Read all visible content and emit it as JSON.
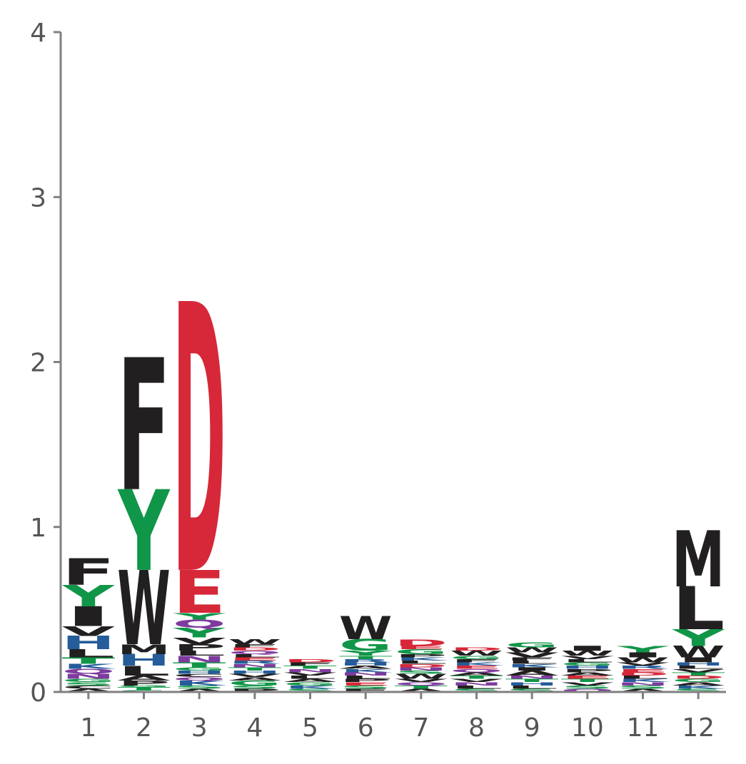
{
  "chart_data": {
    "type": "sequence-logo",
    "title": "",
    "xlabel": "",
    "ylabel": "",
    "ylim": [
      0,
      4
    ],
    "yticks": [
      "0",
      "1",
      "2",
      "3",
      "4"
    ],
    "positions": [
      "1",
      "2",
      "3",
      "4",
      "5",
      "6",
      "7",
      "8",
      "9",
      "10",
      "11",
      "12"
    ],
    "colors": {
      "A": "#221f20",
      "C": "#221f20",
      "D": "#d62839",
      "E": "#d62839",
      "F": "#221f20",
      "G": "#109648",
      "H": "#255c99",
      "I": "#221f20",
      "K": "#255c99",
      "L": "#221f20",
      "M": "#221f20",
      "N": "#7e3b9e",
      "P": "#221f20",
      "Q": "#7e3b9e",
      "R": "#255c99",
      "S": "#109648",
      "T": "#109648",
      "V": "#221f20",
      "W": "#221f20",
      "Y": "#109648"
    },
    "stacks": [
      [
        [
          "A",
          0.02
        ],
        [
          "C",
          0.02
        ],
        [
          "S",
          0.02
        ],
        [
          "G",
          0.02
        ],
        [
          "N",
          0.03
        ],
        [
          "Q",
          0.03
        ],
        [
          "K",
          0.03
        ],
        [
          "T",
          0.04
        ],
        [
          "L",
          0.05
        ],
        [
          "H",
          0.08
        ],
        [
          "V",
          0.06
        ],
        [
          "I",
          0.12
        ],
        [
          "Y",
          0.13
        ],
        [
          "F",
          0.16
        ]
      ],
      [
        [
          "S",
          0.01
        ],
        [
          "T",
          0.02
        ],
        [
          "G",
          0.01
        ],
        [
          "P",
          0.03
        ],
        [
          "A",
          0.03
        ],
        [
          "L",
          0.06
        ],
        [
          "H",
          0.07
        ],
        [
          "M",
          0.06
        ],
        [
          "W",
          0.45
        ],
        [
          "Y",
          0.49
        ],
        [
          "F",
          0.8
        ]
      ],
      [
        [
          "A",
          0.02
        ],
        [
          "S",
          0.02
        ],
        [
          "K",
          0.03
        ],
        [
          "Q",
          0.02
        ],
        [
          "C",
          0.02
        ],
        [
          "H",
          0.02
        ],
        [
          "G",
          0.02
        ],
        [
          "T",
          0.03
        ],
        [
          "N",
          0.04
        ],
        [
          "L",
          0.03
        ],
        [
          "P",
          0.04
        ],
        [
          "V",
          0.04
        ],
        [
          "Y",
          0.06
        ],
        [
          "Q",
          0.05
        ],
        [
          "Y",
          0.04
        ],
        [
          "E",
          0.26
        ],
        [
          "D",
          1.63
        ]
      ],
      [
        [
          "P",
          0.02
        ],
        [
          "S",
          0.02
        ],
        [
          "G",
          0.03
        ],
        [
          "A",
          0.02
        ],
        [
          "V",
          0.02
        ],
        [
          "H",
          0.02
        ],
        [
          "T",
          0.02
        ],
        [
          "N",
          0.02
        ],
        [
          "R",
          0.02
        ],
        [
          "E",
          0.02
        ],
        [
          "L",
          0.02
        ],
        [
          "Q",
          0.02
        ],
        [
          "D",
          0.02
        ],
        [
          "F",
          0.02
        ],
        [
          "W",
          0.03
        ]
      ],
      [
        [
          "S",
          0.02
        ],
        [
          "K",
          0.02
        ],
        [
          "G",
          0.02
        ],
        [
          "A",
          0.02
        ],
        [
          "L",
          0.02
        ],
        [
          "V",
          0.02
        ],
        [
          "N",
          0.02
        ],
        [
          "T",
          0.02
        ],
        [
          "F",
          0.02
        ],
        [
          "D",
          0.02
        ]
      ],
      [
        [
          "F",
          0.02
        ],
        [
          "S",
          0.02
        ],
        [
          "E",
          0.02
        ],
        [
          "P",
          0.02
        ],
        [
          "L",
          0.02
        ],
        [
          "N",
          0.02
        ],
        [
          "K",
          0.02
        ],
        [
          "A",
          0.02
        ],
        [
          "H",
          0.02
        ],
        [
          "R",
          0.02
        ],
        [
          "T",
          0.02
        ],
        [
          "Y",
          0.03
        ],
        [
          "G",
          0.07
        ],
        [
          "W",
          0.14
        ]
      ],
      [
        [
          "A",
          0.02
        ],
        [
          "T",
          0.02
        ],
        [
          "Q",
          0.02
        ],
        [
          "V",
          0.02
        ],
        [
          "W",
          0.03
        ],
        [
          "S",
          0.02
        ],
        [
          "N",
          0.02
        ],
        [
          "D",
          0.02
        ],
        [
          "L",
          0.02
        ],
        [
          "K",
          0.02
        ],
        [
          "P",
          0.02
        ],
        [
          "G",
          0.03
        ],
        [
          "E",
          0.02
        ],
        [
          "D",
          0.04
        ]
      ],
      [
        [
          "S",
          0.02
        ],
        [
          "L",
          0.02
        ],
        [
          "N",
          0.02
        ],
        [
          "V",
          0.02
        ],
        [
          "T",
          0.02
        ],
        [
          "A",
          0.02
        ],
        [
          "Q",
          0.02
        ],
        [
          "E",
          0.02
        ],
        [
          "K",
          0.02
        ],
        [
          "F",
          0.02
        ],
        [
          "G",
          0.02
        ],
        [
          "W",
          0.03
        ],
        [
          "D",
          0.02
        ]
      ],
      [
        [
          "S",
          0.02
        ],
        [
          "L",
          0.02
        ],
        [
          "H",
          0.02
        ],
        [
          "T",
          0.02
        ],
        [
          "N",
          0.02
        ],
        [
          "A",
          0.03
        ],
        [
          "I",
          0.02
        ],
        [
          "K",
          0.02
        ],
        [
          "L",
          0.02
        ],
        [
          "F",
          0.02
        ],
        [
          "V",
          0.03
        ],
        [
          "W",
          0.03
        ],
        [
          "G",
          0.03
        ]
      ],
      [
        [
          "Q",
          0.02
        ],
        [
          "S",
          0.02
        ],
        [
          "V",
          0.02
        ],
        [
          "T",
          0.02
        ],
        [
          "E",
          0.02
        ],
        [
          "A",
          0.02
        ],
        [
          "P",
          0.02
        ],
        [
          "H",
          0.02
        ],
        [
          "G",
          0.02
        ],
        [
          "L",
          0.02
        ],
        [
          "V",
          0.02
        ],
        [
          "W",
          0.03
        ],
        [
          "I",
          0.03
        ]
      ],
      [
        [
          "A",
          0.02
        ],
        [
          "S",
          0.02
        ],
        [
          "N",
          0.02
        ],
        [
          "K",
          0.02
        ],
        [
          "L",
          0.02
        ],
        [
          "D",
          0.02
        ],
        [
          "E",
          0.02
        ],
        [
          "R",
          0.02
        ],
        [
          "V",
          0.02
        ],
        [
          "W",
          0.03
        ],
        [
          "I",
          0.03
        ],
        [
          "Y",
          0.04
        ]
      ],
      [
        [
          "S",
          0.02
        ],
        [
          "K",
          0.02
        ],
        [
          "A",
          0.02
        ],
        [
          "G",
          0.02
        ],
        [
          "D",
          0.02
        ],
        [
          "T",
          0.02
        ],
        [
          "V",
          0.02
        ],
        [
          "L",
          0.02
        ],
        [
          "H",
          0.02
        ],
        [
          "I",
          0.03
        ],
        [
          "W",
          0.07
        ],
        [
          "Y",
          0.1
        ],
        [
          "L",
          0.26
        ],
        [
          "M",
          0.34
        ]
      ]
    ]
  }
}
